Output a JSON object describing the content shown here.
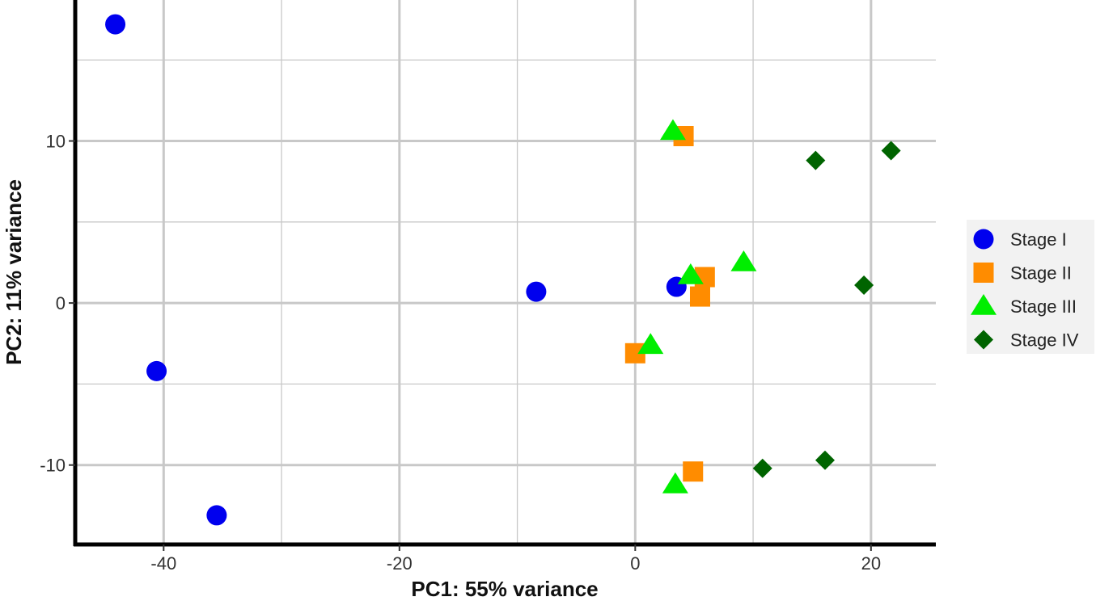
{
  "chart_data": {
    "type": "scatter",
    "xlabel": "PC1: 55% variance",
    "ylabel": "PC2: 11% variance",
    "xlim": [
      -47.5,
      25.5
    ],
    "ylim": [
      -14.9,
      18.7
    ],
    "x_ticks": [
      {
        "value": -40,
        "label": "-40"
      },
      {
        "value": -20,
        "label": "-20"
      },
      {
        "value": 0,
        "label": "0"
      },
      {
        "value": 20,
        "label": "20"
      }
    ],
    "y_ticks": [
      {
        "value": -10,
        "label": "-10"
      },
      {
        "value": 0,
        "label": "0"
      },
      {
        "value": 10,
        "label": "10"
      }
    ],
    "grid": true,
    "legend_position": "right",
    "series": [
      {
        "name": "Stage I",
        "shape": "circle",
        "color": "#0000ee",
        "points": [
          [
            -44.1,
            17.2
          ],
          [
            -40.6,
            -4.2
          ],
          [
            -35.5,
            -13.1
          ],
          [
            -8.4,
            0.7
          ],
          [
            3.5,
            1.0
          ]
        ]
      },
      {
        "name": "Stage II",
        "shape": "square",
        "color": "#ff8c00",
        "points": [
          [
            4.1,
            10.3
          ],
          [
            5.9,
            1.6
          ],
          [
            5.5,
            0.4
          ],
          [
            0.0,
            -3.1
          ],
          [
            4.9,
            -10.4
          ]
        ]
      },
      {
        "name": "Stage III",
        "shape": "triangle",
        "color": "#00ee00",
        "points": [
          [
            3.2,
            10.6
          ],
          [
            4.7,
            1.7
          ],
          [
            9.2,
            2.5
          ],
          [
            1.3,
            -2.6
          ],
          [
            3.4,
            -11.2
          ]
        ]
      },
      {
        "name": "Stage IV",
        "shape": "diamond",
        "color": "#006400",
        "points": [
          [
            15.3,
            8.8
          ],
          [
            21.7,
            9.4
          ],
          [
            19.4,
            1.1
          ],
          [
            10.8,
            -10.2
          ],
          [
            16.1,
            -9.7
          ]
        ]
      }
    ]
  }
}
